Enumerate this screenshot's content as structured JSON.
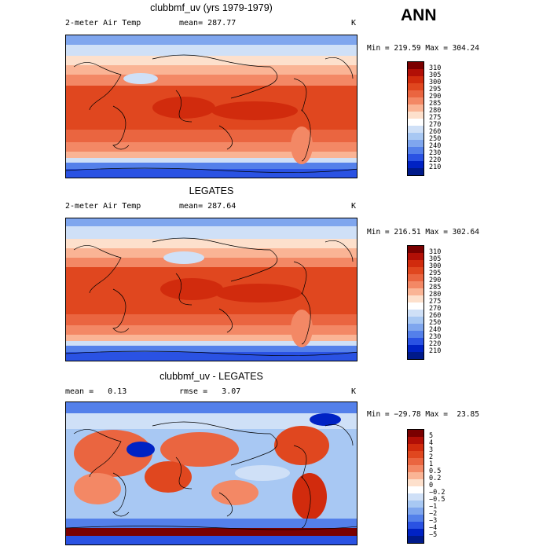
{
  "season": "ANN",
  "panels": [
    {
      "title": "clubbmf_uv (yrs 1979-1979)",
      "left_label": "2-meter Air Temp",
      "center_label": "mean= 287.77",
      "units": "K",
      "minmax": "Min = 219.59 Max = 304.24"
    },
    {
      "title": "LEGATES",
      "left_label": "2-meter Air Temp",
      "center_label": "mean= 287.64",
      "units": "K",
      "minmax": "Min = 216.51 Max = 302.64"
    },
    {
      "title": "clubbmf_uv - LEGATES",
      "left_label": "mean =   0.13",
      "center_label": "rmse =   3.07",
      "units": "K",
      "minmax": "Min = −29.78 Max =  23.85"
    }
  ],
  "colorbars": {
    "temp_levels": [
      "310",
      "305",
      "300",
      "295",
      "290",
      "285",
      "280",
      "275",
      "270",
      "260",
      "250",
      "240",
      "230",
      "220",
      "210"
    ],
    "temp_colors": [
      "#7a0000",
      "#b20f06",
      "#d12b0d",
      "#e0471f",
      "#ea6540",
      "#f38865",
      "#fab495",
      "#fde0cc",
      "#ffffff",
      "#cfe0f7",
      "#a8c8f3",
      "#7fa6ee",
      "#5480ea",
      "#2a52e3",
      "#0022c4",
      "#001a8a"
    ],
    "diff_levels": [
      "5",
      "4",
      "3",
      "2",
      "1",
      "0.5",
      "0.2",
      "0",
      "−0.2",
      "−0.5",
      "−1",
      "−2",
      "−3",
      "−4",
      "−5"
    ],
    "diff_colors": [
      "#7a0000",
      "#b20f06",
      "#d12b0d",
      "#e0471f",
      "#ea6540",
      "#f38865",
      "#fab495",
      "#fde0cc",
      "#ffffff",
      "#cfe0f7",
      "#a8c8f3",
      "#7fa6ee",
      "#5480ea",
      "#2a52e3",
      "#0022c4",
      "#001a8a"
    ]
  }
}
